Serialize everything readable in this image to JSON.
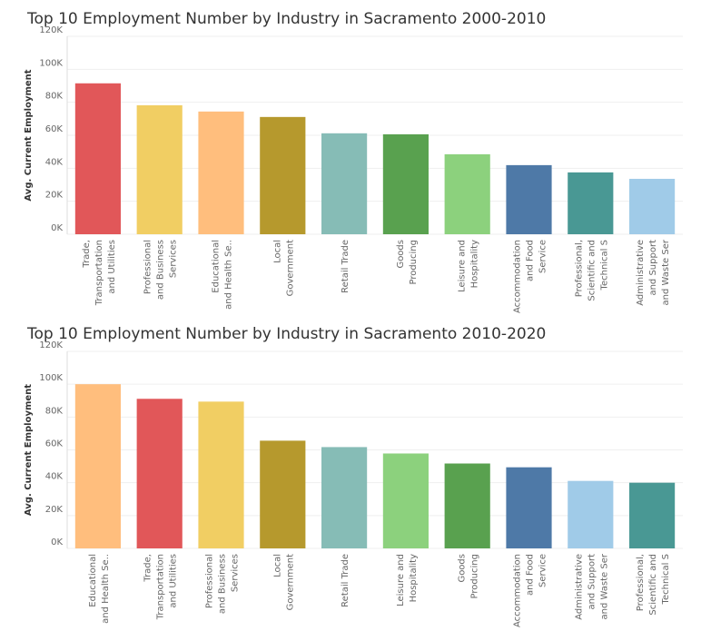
{
  "chart_data": [
    {
      "type": "bar",
      "title": "Top 10 Employment Number by Industry in Sacramento 2000-2010",
      "y_label": "Avg. Current Employment",
      "categories": [
        [
          "Trade,",
          "Transportation",
          "and Utilities"
        ],
        [
          "Professional",
          "and Business",
          "Services"
        ],
        [
          "Educational",
          "and Health Se.."
        ],
        [
          "Local",
          "Government"
        ],
        [
          "Retail Trade"
        ],
        [
          "Goods",
          "Producing"
        ],
        [
          "Leisure and",
          "Hospitality"
        ],
        [
          "Accommodation",
          "and Food",
          "Service"
        ],
        [
          "Professional,",
          "Scientific and",
          "Technical S"
        ],
        [
          "Administrative",
          "and Support",
          "and Waste Ser"
        ]
      ],
      "values": [
        91500,
        78200,
        74400,
        71100,
        61200,
        60600,
        48500,
        41900,
        37500,
        33600
      ],
      "colors": [
        "#e15759",
        "#f1ce63",
        "#ffbe7d",
        "#b6992d",
        "#86bcb6",
        "#59a14f",
        "#8cd17d",
        "#4e79a7",
        "#499894",
        "#a0cbe8"
      ],
      "ylim": [
        0,
        120000
      ],
      "yticks": [
        {
          "value": 0,
          "label": "0K"
        },
        {
          "value": 20000,
          "label": "20K"
        },
        {
          "value": 40000,
          "label": "40K"
        },
        {
          "value": 60000,
          "label": "60K"
        },
        {
          "value": 80000,
          "label": "80K"
        },
        {
          "value": 100000,
          "label": "100K"
        },
        {
          "value": 120000,
          "label": "120K"
        }
      ],
      "grid": true
    },
    {
      "type": "bar",
      "title": "Top 10 Employment Number by Industry in Sacramento 2010-2020",
      "y_label": "Avg. Current Employment",
      "categories": [
        [
          "Educational",
          "and Health Se.."
        ],
        [
          "Trade,",
          "Transportation",
          "and Utilities"
        ],
        [
          "Professional",
          "and Business",
          "Services"
        ],
        [
          "Local",
          "Government"
        ],
        [
          "Retail Trade"
        ],
        [
          "Leisure and",
          "Hospitality"
        ],
        [
          "Goods",
          "Producing"
        ],
        [
          "Accommodation",
          "and Food",
          "Service"
        ],
        [
          "Administrative",
          "and Support",
          "and Waste Ser"
        ],
        [
          "Professional,",
          "Scientific and",
          "Technical S"
        ]
      ],
      "values": [
        100000,
        91100,
        89400,
        65600,
        61700,
        57800,
        51700,
        49400,
        41100,
        40000
      ],
      "colors": [
        "#ffbe7d",
        "#e15759",
        "#f1ce63",
        "#b6992d",
        "#86bcb6",
        "#8cd17d",
        "#59a14f",
        "#4e79a7",
        "#a0cbe8",
        "#499894"
      ],
      "ylim": [
        0,
        120000
      ],
      "yticks": [
        {
          "value": 0,
          "label": "0K"
        },
        {
          "value": 20000,
          "label": "20K"
        },
        {
          "value": 40000,
          "label": "40K"
        },
        {
          "value": 60000,
          "label": "60K"
        },
        {
          "value": 80000,
          "label": "80K"
        },
        {
          "value": 100000,
          "label": "100K"
        },
        {
          "value": 120000,
          "label": "120K"
        }
      ],
      "grid": true
    }
  ]
}
